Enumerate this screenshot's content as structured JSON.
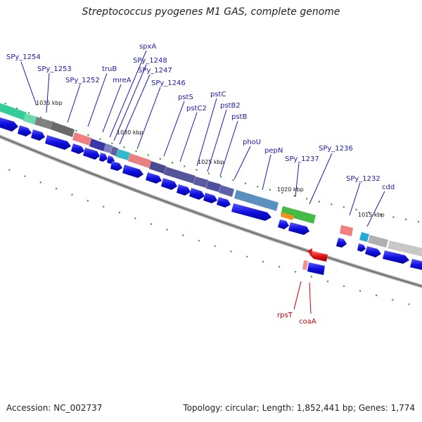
{
  "title": "Streptococcus pyogenes M1 GAS, complete genome",
  "footer": {
    "accession": "Accession: NC_002737",
    "summary": "Topology: circular; Length: 1,852,441 bp; Genes: 1,774"
  },
  "kbp_labels": [
    "1035 kbp",
    "1030 kbp",
    "1025 kbp",
    "1020 kbp",
    "1015 kbp"
  ],
  "gene_labels": {
    "spy1254": "SPy_1254",
    "spy1253": "SPy_1253",
    "spy1252": "SPy_1252",
    "truB": "truB",
    "mreA": "mreA",
    "spxA": "spxA",
    "spy1248": "SPy_1248",
    "spy1247": "SPy_1247",
    "spy1246": "SPy_1246",
    "pstS": "pstS",
    "pstC2": "pstC2",
    "pstC": "pstC",
    "pstB2": "pstB2",
    "pstB": "pstB",
    "phoU": "phoU",
    "pepN": "pepN",
    "spy1237": "SPy_1237",
    "spy1236": "SPy_1236",
    "spy1232": "SPy_1232",
    "cdd": "cdd",
    "rpsT": "rpsT",
    "coaA": "coaA"
  },
  "colors": {
    "forward_gene": "#1010e0",
    "reverse_gene": "#e01010",
    "label_blue": "#1a1ab0",
    "label_red": "#cc0000",
    "backbone": "#888888",
    "tick": "#2a8a2a"
  }
}
